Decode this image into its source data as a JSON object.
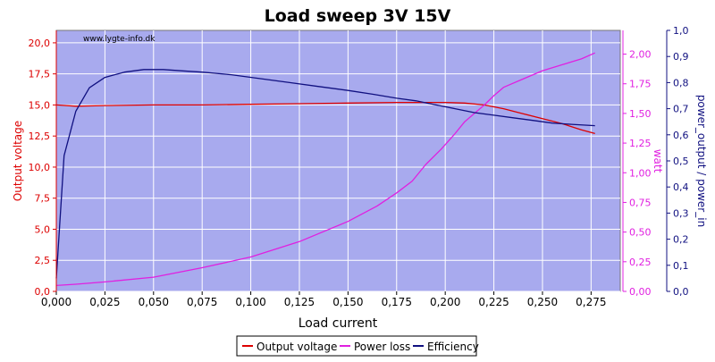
{
  "chart_data": {
    "type": "line",
    "title": "Load sweep 3V 15V",
    "watermark": "www.lygte-info.dk",
    "xlabel": "Load current",
    "ylabel_left": "Output voltage",
    "ylabel_right1": "watt",
    "ylabel_right2": "power_output / power_in",
    "xlim": [
      0,
      0.29
    ],
    "ylim_left": [
      0,
      21
    ],
    "ylim_right1": [
      0,
      2.2
    ],
    "ylim_right2": [
      0,
      1.0
    ],
    "x_ticks": [
      "0,000",
      "0,025",
      "0,050",
      "0,075",
      "0,100",
      "0,125",
      "0,150",
      "0,175",
      "0,200",
      "0,225",
      "0,250",
      "0,275"
    ],
    "y_left_ticks": [
      "0,0",
      "2,5",
      "5,0",
      "7,5",
      "10,0",
      "12,5",
      "15,0",
      "17,5",
      "20,0"
    ],
    "y_right1_ticks": [
      "0,00",
      "0,25",
      "0,50",
      "0,75",
      "1,00",
      "1,25",
      "1,50",
      "1,75",
      "2,00"
    ],
    "y_right2_ticks": [
      "0,0",
      "0,1",
      "0,2",
      "0,3",
      "0,4",
      "0,5",
      "0,6",
      "0,7",
      "0,8",
      "0,9",
      "1,0"
    ],
    "grid": true,
    "legend_position": "bottom",
    "colors": {
      "plot_bg": "#a8aaee",
      "grid": "#ffffff",
      "output_voltage": "#dd0000",
      "power_loss": "#e020e0",
      "efficiency": "#101080",
      "left_axis": "#dd0000",
      "right1_axis": "#e020e0",
      "right2_axis": "#101080"
    },
    "series": [
      {
        "name": "Output voltage",
        "axis": "left",
        "x": [
          0.0,
          0.01,
          0.025,
          0.05,
          0.075,
          0.1,
          0.125,
          0.15,
          0.175,
          0.19,
          0.2,
          0.21,
          0.22,
          0.23,
          0.24,
          0.25,
          0.26,
          0.27,
          0.277
        ],
        "y": [
          15.0,
          14.9,
          14.95,
          15.0,
          15.0,
          15.05,
          15.1,
          15.15,
          15.2,
          15.2,
          15.2,
          15.15,
          15.0,
          14.7,
          14.3,
          13.9,
          13.5,
          13.0,
          12.7
        ]
      },
      {
        "name": "Power loss",
        "axis": "right1",
        "x": [
          0.0,
          0.01,
          0.025,
          0.05,
          0.075,
          0.1,
          0.125,
          0.15,
          0.165,
          0.175,
          0.183,
          0.19,
          0.198,
          0.205,
          0.21,
          0.215,
          0.22,
          0.225,
          0.23,
          0.24,
          0.25,
          0.26,
          0.27,
          0.277
        ],
        "y": [
          0.05,
          0.06,
          0.08,
          0.12,
          0.2,
          0.29,
          0.42,
          0.59,
          0.72,
          0.83,
          0.93,
          1.07,
          1.2,
          1.33,
          1.43,
          1.5,
          1.57,
          1.65,
          1.72,
          1.79,
          1.86,
          1.91,
          1.96,
          2.01
        ]
      },
      {
        "name": "Efficiency",
        "axis": "right2",
        "x": [
          0.0,
          0.004,
          0.01,
          0.017,
          0.025,
          0.035,
          0.045,
          0.055,
          0.065,
          0.075,
          0.09,
          0.105,
          0.12,
          0.135,
          0.15,
          0.163,
          0.175,
          0.185,
          0.195,
          0.205,
          0.215,
          0.225,
          0.235,
          0.245,
          0.255,
          0.265,
          0.277
        ],
        "y": [
          0.05,
          0.52,
          0.69,
          0.78,
          0.82,
          0.84,
          0.85,
          0.85,
          0.845,
          0.84,
          0.83,
          0.815,
          0.8,
          0.785,
          0.77,
          0.755,
          0.74,
          0.73,
          0.715,
          0.7,
          0.685,
          0.675,
          0.665,
          0.655,
          0.645,
          0.64,
          0.635
        ]
      }
    ]
  }
}
